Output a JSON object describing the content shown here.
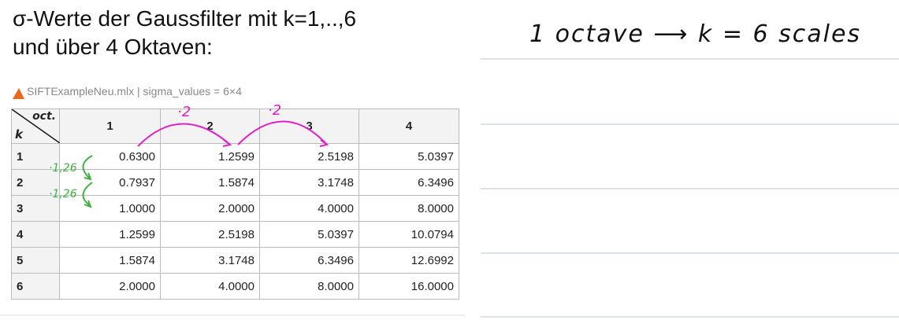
{
  "header": {
    "title_lines": [
      "σ-Werte der Gaussfilter mit k=1,..,6",
      "und über 4 Oktaven:"
    ]
  },
  "window": {
    "title": "SIFTExampleNeu.mlx | sigma_values = 6×4"
  },
  "table": {
    "corner_top": "oct.",
    "corner_bottom": "k",
    "columns": [
      "1",
      "2",
      "3",
      "4"
    ],
    "row_labels": [
      "1",
      "2",
      "3",
      "4",
      "5",
      "6"
    ],
    "rows": [
      [
        "0.6300",
        "1.2599",
        "2.5198",
        "5.0397"
      ],
      [
        "0.7937",
        "1.5874",
        "3.1748",
        "6.3496"
      ],
      [
        "1.0000",
        "2.0000",
        "4.0000",
        "8.0000"
      ],
      [
        "1.2599",
        "2.5198",
        "5.0397",
        "10.0794"
      ],
      [
        "1.5874",
        "3.1748",
        "6.3496",
        "12.6992"
      ],
      [
        "2.0000",
        "4.0000",
        "8.0000",
        "16.0000"
      ]
    ]
  },
  "annotations": {
    "octave_factor": [
      "·2",
      "·2"
    ],
    "scale_factor": [
      "·1,26",
      "·1,26"
    ],
    "note": "1 octave ⟶ k = 6 scales"
  }
}
